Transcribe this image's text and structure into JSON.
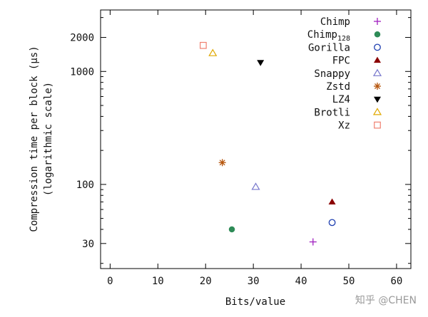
{
  "chart_data": {
    "type": "scatter",
    "xlabel": "Bits/value",
    "ylabel_line1": "Compression time per block (µs)",
    "ylabel_line2": "(logarithmic scale)",
    "xlim": [
      -2,
      63
    ],
    "ylim": [
      18,
      3500
    ],
    "yscale": "log",
    "x_ticks": [
      0,
      10,
      20,
      30,
      40,
      50,
      60
    ],
    "y_ticks": [
      30,
      100,
      1000,
      2000
    ],
    "legend_position": "top-right",
    "grid": false,
    "series": [
      {
        "name": "Chimp",
        "name_sub": "",
        "marker": "plus",
        "color": "#a020c0",
        "x": 42.5,
        "y": 31
      },
      {
        "name": "Chimp",
        "name_sub": "128",
        "marker": "circle-filled",
        "color": "#2e8b57",
        "x": 25.5,
        "y": 40
      },
      {
        "name": "Gorilla",
        "name_sub": "",
        "marker": "circle-open",
        "color": "#1f3fb0",
        "x": 46.5,
        "y": 46
      },
      {
        "name": "FPC",
        "name_sub": "",
        "marker": "triangle-up-filled",
        "color": "#8b0000",
        "x": 46.5,
        "y": 70
      },
      {
        "name": "Snappy",
        "name_sub": "",
        "marker": "triangle-up-open",
        "color": "#7777cc",
        "x": 30.5,
        "y": 95
      },
      {
        "name": "Zstd",
        "name_sub": "",
        "marker": "asterisk",
        "color": "#b5540b",
        "x": 23.5,
        "y": 156
      },
      {
        "name": "LZ4",
        "name_sub": "",
        "marker": "triangle-down-filled",
        "color": "#000000",
        "x": 31.5,
        "y": 1200
      },
      {
        "name": "Brotli",
        "name_sub": "",
        "marker": "triangle-up-open",
        "color": "#e0a800",
        "x": 21.5,
        "y": 1450
      },
      {
        "name": "Xz",
        "name_sub": "",
        "marker": "square-open",
        "color": "#f08070",
        "x": 19.5,
        "y": 1700
      }
    ]
  },
  "watermark": "知乎 @CHEN"
}
